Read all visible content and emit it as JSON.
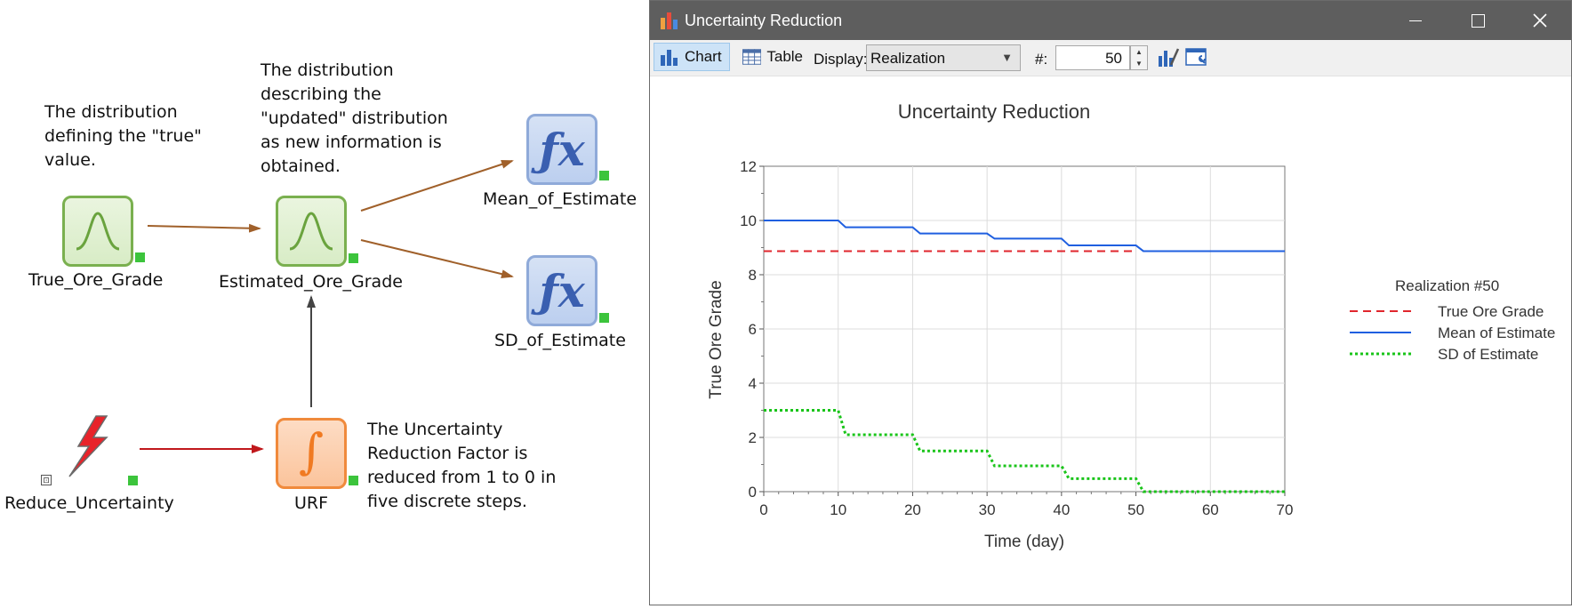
{
  "diagram": {
    "notes": {
      "true_grade": [
        "The distribution",
        "defining the \"true\"",
        "value."
      ],
      "estimated": [
        "The distribution",
        "describing the",
        "\"updated\" distribution",
        "as new information is",
        "obtained."
      ],
      "urf": [
        "The Uncertainty",
        "Reduction Factor is",
        "reduced from 1 to 0 in",
        "five discrete steps."
      ]
    },
    "nodes": {
      "true_ore_grade": "True_Ore_Grade",
      "estimated_ore_grade": "Estimated_Ore_Grade",
      "mean_of_estimate": "Mean_of_Estimate",
      "sd_of_estimate": "SD_of_Estimate",
      "reduce_uncertainty": "Reduce_Uncertainty",
      "urf": "URF"
    },
    "icons": {
      "stochastic": "bell-curve-icon",
      "function": "fx-icon",
      "integrator": "integral-icon",
      "event": "lightning-bolt-icon"
    },
    "expander": "⊡",
    "colors": {
      "link_brown": "#a0602a",
      "link_red": "#c0181c",
      "link_gray": "#444444",
      "status_green": "#3cc43c"
    }
  },
  "window": {
    "title": "Uncertainty Reduction",
    "toolbar": {
      "chart_label": "Chart",
      "table_label": "Table",
      "display_label": "Display:",
      "display_value": "Realization",
      "number_label": "#:",
      "number_value": "50"
    }
  },
  "chart_data": {
    "type": "line",
    "title": "Uncertainty Reduction",
    "xlabel": "Time (day)",
    "ylabel": "True Ore Grade",
    "xlim": [
      0,
      70
    ],
    "ylim": [
      0,
      12
    ],
    "xticks": [
      0,
      10,
      20,
      30,
      40,
      50,
      60,
      70
    ],
    "yticks": [
      0,
      2,
      4,
      6,
      8,
      10,
      12
    ],
    "grid": true,
    "legend_title": "Realization #50",
    "legend_position": "right",
    "series": [
      {
        "name": "True Ore Grade",
        "style": "dashed",
        "color": "#e0262d",
        "x": [
          0,
          50
        ],
        "y": [
          8.87,
          8.87
        ]
      },
      {
        "name": "Mean of Estimate",
        "style": "solid",
        "color": "#1f5fe0",
        "x": [
          0,
          10,
          11,
          20,
          21,
          30,
          31,
          40,
          41,
          50,
          51,
          70
        ],
        "y": [
          10.0,
          10.0,
          9.75,
          9.75,
          9.52,
          9.52,
          9.33,
          9.33,
          9.08,
          9.08,
          8.87,
          8.87
        ]
      },
      {
        "name": "SD of Estimate",
        "style": "dotted",
        "color": "#19c419",
        "x": [
          0,
          10,
          11,
          20,
          21,
          30,
          31,
          40,
          41,
          50,
          51,
          70
        ],
        "y": [
          3.0,
          3.0,
          2.1,
          2.1,
          1.5,
          1.5,
          0.95,
          0.95,
          0.48,
          0.48,
          0.0,
          0.0
        ]
      }
    ]
  }
}
